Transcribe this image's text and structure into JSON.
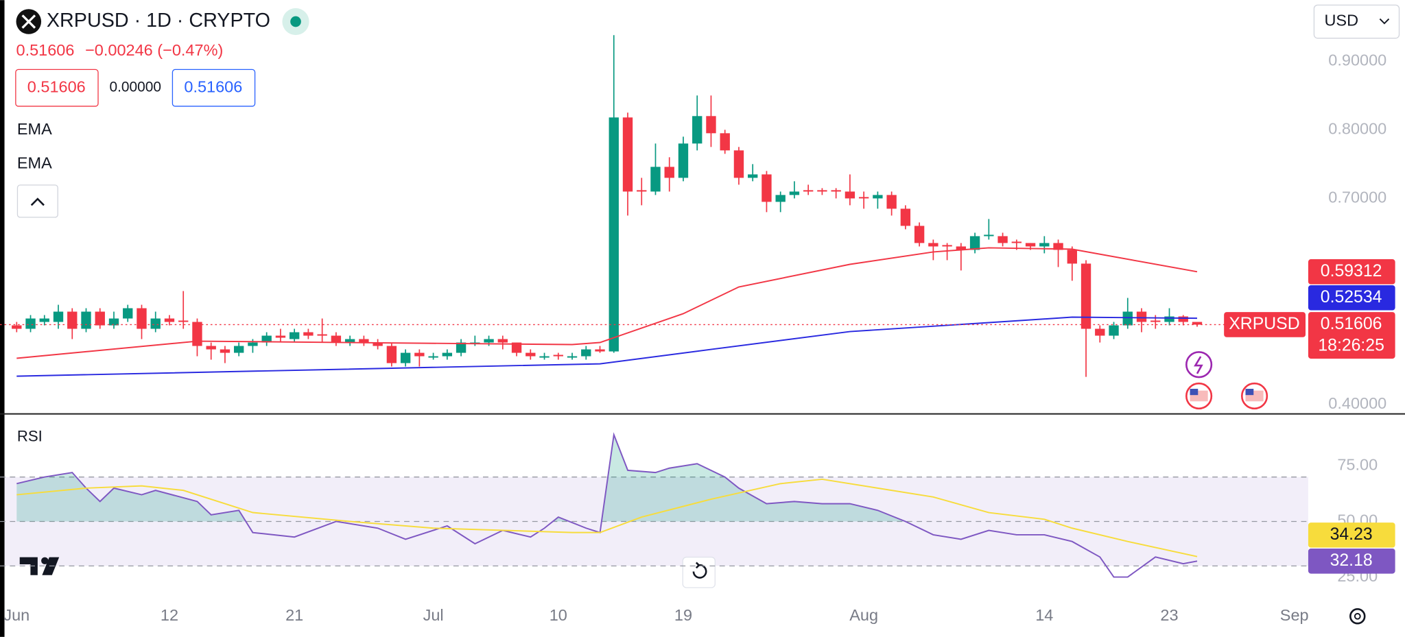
{
  "header": {
    "symbol": "XRPUSD · 1D · CRYPTO",
    "change": "−0.00246 (−0.47%)",
    "spread": "0.00000",
    "currency": "USD",
    "countdown": "18:26:25"
  },
  "chart_data": [
    {
      "type": "candlestick",
      "title": "XRPUSD",
      "up_color": "#089981",
      "down_color": "#f23645",
      "xlim": [
        -1.2,
        93
      ],
      "ylim": [
        0.386,
        0.989
      ],
      "xticks": [
        {
          "value": 0,
          "label": "Jun"
        },
        {
          "value": 11,
          "label": "12"
        },
        {
          "value": 20,
          "label": "21"
        },
        {
          "value": 30,
          "label": "Jul"
        },
        {
          "value": 39,
          "label": "10"
        },
        {
          "value": 48,
          "label": "19"
        },
        {
          "value": 61,
          "label": "Aug"
        },
        {
          "value": 74,
          "label": "14"
        },
        {
          "value": 83,
          "label": "23"
        },
        {
          "value": 92,
          "label": "Sep"
        }
      ],
      "yticks": [
        {
          "value": 0.9,
          "label": "0.90000"
        },
        {
          "value": 0.8,
          "label": "0.80000"
        },
        {
          "value": 0.7,
          "label": "0.70000"
        },
        {
          "value": 0.4,
          "label": "0.40000"
        }
      ],
      "ohlc": [
        [
          0.515,
          0.52,
          0.505,
          0.51
        ],
        [
          0.51,
          0.53,
          0.505,
          0.525
        ],
        [
          0.52,
          0.53,
          0.515,
          0.525
        ],
        [
          0.52,
          0.545,
          0.51,
          0.535
        ],
        [
          0.535,
          0.54,
          0.495,
          0.51
        ],
        [
          0.51,
          0.54,
          0.505,
          0.535
        ],
        [
          0.535,
          0.54,
          0.51,
          0.515
        ],
        [
          0.515,
          0.535,
          0.51,
          0.525
        ],
        [
          0.525,
          0.545,
          0.52,
          0.54
        ],
        [
          0.54,
          0.545,
          0.495,
          0.51
        ],
        [
          0.51,
          0.535,
          0.505,
          0.525
        ],
        [
          0.525,
          0.53,
          0.515,
          0.52
        ],
        [
          0.522,
          0.565,
          0.51,
          0.52
        ],
        [
          0.52,
          0.525,
          0.47,
          0.485
        ],
        [
          0.485,
          0.49,
          0.465,
          0.48
        ],
        [
          0.48,
          0.485,
          0.46,
          0.475
        ],
        [
          0.475,
          0.49,
          0.47,
          0.485
        ],
        [
          0.485,
          0.495,
          0.475,
          0.49
        ],
        [
          0.49,
          0.505,
          0.485,
          0.5
        ],
        [
          0.5,
          0.51,
          0.49,
          0.497
        ],
        [
          0.495,
          0.51,
          0.49,
          0.505
        ],
        [
          0.505,
          0.51,
          0.495,
          0.5
        ],
        [
          0.502,
          0.525,
          0.49,
          0.5
        ],
        [
          0.5,
          0.505,
          0.485,
          0.49
        ],
        [
          0.49,
          0.5,
          0.485,
          0.495
        ],
        [
          0.495,
          0.5,
          0.485,
          0.49
        ],
        [
          0.49,
          0.495,
          0.48,
          0.485
        ],
        [
          0.485,
          0.49,
          0.455,
          0.46
        ],
        [
          0.46,
          0.48,
          0.455,
          0.475
        ],
        [
          0.475,
          0.48,
          0.455,
          0.47
        ],
        [
          0.468,
          0.475,
          0.465,
          0.47
        ],
        [
          0.47,
          0.48,
          0.465,
          0.475
        ],
        [
          0.475,
          0.495,
          0.47,
          0.49
        ],
        [
          0.488,
          0.5,
          0.485,
          0.49
        ],
        [
          0.49,
          0.5,
          0.485,
          0.495
        ],
        [
          0.495,
          0.5,
          0.48,
          0.49
        ],
        [
          0.49,
          0.49,
          0.47,
          0.475
        ],
        [
          0.475,
          0.48,
          0.465,
          0.47
        ],
        [
          0.468,
          0.475,
          0.465,
          0.47
        ],
        [
          0.472,
          0.475,
          0.465,
          0.47
        ],
        [
          0.468,
          0.475,
          0.465,
          0.47
        ],
        [
          0.47,
          0.485,
          0.465,
          0.48
        ],
        [
          0.48,
          0.485,
          0.475,
          0.477
        ],
        [
          0.477,
          0.938,
          0.475,
          0.818
        ],
        [
          0.818,
          0.825,
          0.675,
          0.71
        ],
        [
          0.712,
          0.73,
          0.69,
          0.71
        ],
        [
          0.71,
          0.78,
          0.705,
          0.746
        ],
        [
          0.746,
          0.76,
          0.71,
          0.73
        ],
        [
          0.73,
          0.79,
          0.725,
          0.78
        ],
        [
          0.78,
          0.85,
          0.77,
          0.82
        ],
        [
          0.82,
          0.85,
          0.775,
          0.795
        ],
        [
          0.795,
          0.8,
          0.765,
          0.77
        ],
        [
          0.77,
          0.775,
          0.72,
          0.73
        ],
        [
          0.73,
          0.75,
          0.725,
          0.735
        ],
        [
          0.735,
          0.74,
          0.68,
          0.695
        ],
        [
          0.695,
          0.71,
          0.68,
          0.705
        ],
        [
          0.705,
          0.725,
          0.7,
          0.71
        ],
        [
          0.712,
          0.72,
          0.705,
          0.71
        ],
        [
          0.712,
          0.715,
          0.705,
          0.71
        ],
        [
          0.712,
          0.715,
          0.7,
          0.71
        ],
        [
          0.71,
          0.735,
          0.69,
          0.7
        ],
        [
          0.702,
          0.71,
          0.685,
          0.7
        ],
        [
          0.7,
          0.71,
          0.685,
          0.705
        ],
        [
          0.705,
          0.71,
          0.675,
          0.685
        ],
        [
          0.685,
          0.69,
          0.655,
          0.66
        ],
        [
          0.66,
          0.665,
          0.63,
          0.635
        ],
        [
          0.635,
          0.64,
          0.61,
          0.63
        ],
        [
          0.632,
          0.635,
          0.61,
          0.63
        ],
        [
          0.63,
          0.635,
          0.595,
          0.625
        ],
        [
          0.625,
          0.65,
          0.62,
          0.645
        ],
        [
          0.645,
          0.67,
          0.64,
          0.647
        ],
        [
          0.645,
          0.65,
          0.63,
          0.635
        ],
        [
          0.637,
          0.64,
          0.625,
          0.635
        ],
        [
          0.635,
          0.635,
          0.625,
          0.63
        ],
        [
          0.63,
          0.645,
          0.62,
          0.635
        ],
        [
          0.635,
          0.64,
          0.6,
          0.625
        ],
        [
          0.625,
          0.63,
          0.58,
          0.605
        ],
        [
          0.605,
          0.61,
          0.44,
          0.51
        ],
        [
          0.51,
          0.515,
          0.49,
          0.5
        ],
        [
          0.5,
          0.52,
          0.495,
          0.515
        ],
        [
          0.515,
          0.555,
          0.51,
          0.535
        ],
        [
          0.535,
          0.54,
          0.505,
          0.52
        ],
        [
          0.522,
          0.53,
          0.51,
          0.52
        ],
        [
          0.52,
          0.54,
          0.515,
          0.528
        ],
        [
          0.528,
          0.53,
          0.515,
          0.52
        ],
        [
          0.52,
          0.52,
          0.513,
          0.51606
        ]
      ],
      "series": [
        {
          "name": "EMA",
          "color": "#f23645",
          "x": [
            0,
            13,
            40,
            42,
            48,
            52,
            60,
            66,
            70,
            76,
            85
          ],
          "values": [
            0.467,
            0.492,
            0.487,
            0.49,
            0.532,
            0.571,
            0.604,
            0.622,
            0.628,
            0.626,
            0.59312
          ]
        },
        {
          "name": "EMA",
          "color": "#2929e0",
          "x": [
            0,
            42,
            50,
            60,
            70,
            76,
            85
          ],
          "values": [
            0.441,
            0.459,
            0.48,
            0.506,
            0.519,
            0.527,
            0.52534
          ]
        }
      ]
    },
    {
      "type": "line",
      "title": "RSI",
      "xlim": [
        -1.2,
        93
      ],
      "ylim": [
        15,
        98
      ],
      "yticks": [
        {
          "value": 75,
          "label": "75.00"
        },
        {
          "value": 50,
          "label": "50.00"
        },
        {
          "value": 25,
          "label": "25.00"
        }
      ],
      "bands": [
        70,
        50,
        30
      ],
      "series": [
        {
          "name": "RSI",
          "color": "#7e57c2",
          "x": [
            0,
            2,
            4,
            5,
            6,
            7,
            9,
            10,
            13,
            14,
            16,
            17,
            20,
            23,
            26,
            28,
            31,
            33,
            35,
            37,
            38,
            39,
            41,
            42,
            43,
            44,
            46,
            47,
            49,
            51,
            52,
            54,
            56,
            58,
            60,
            62,
            64,
            66,
            68,
            70,
            72,
            74,
            76,
            78,
            79,
            80,
            82,
            84,
            85
          ],
          "values": [
            67,
            70,
            72,
            65,
            59,
            65,
            62,
            64,
            59,
            53,
            55,
            45,
            43,
            50,
            47,
            42,
            48,
            40,
            46,
            43,
            47,
            52,
            47,
            45,
            89,
            73,
            72,
            74,
            76,
            70,
            65,
            58,
            59,
            58,
            58,
            55,
            50,
            44,
            42,
            46,
            44,
            44,
            41,
            34,
            25,
            25,
            34,
            31,
            32.18
          ]
        },
        {
          "color": "#f7dc3c",
          "x": [
            0,
            5,
            9,
            12,
            17,
            24,
            30,
            40,
            42,
            45,
            50,
            55,
            58,
            62,
            66,
            70,
            74,
            76,
            80,
            85
          ],
          "values": [
            62,
            65,
            66,
            64,
            54,
            50,
            47,
            45,
            45,
            52,
            60,
            67,
            69,
            65,
            61,
            54,
            51,
            47,
            41,
            34.23
          ]
        }
      ]
    }
  ]
}
